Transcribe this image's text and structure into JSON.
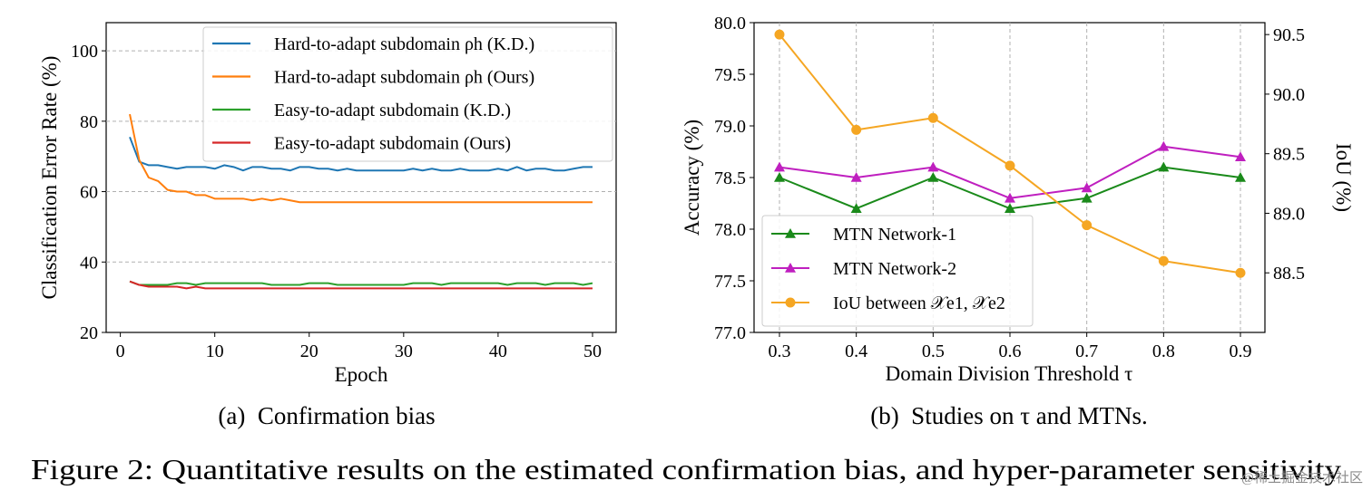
{
  "figure_caption": "Figure 2: Quantitative results on the estimated confirmation bias, and hyper-parameter sensitivity",
  "watermark": "@稀土掘金技术社区",
  "chart_data": [
    {
      "type": "line",
      "caption": "(a)  Confirmation bias",
      "xlabel": "Epoch",
      "ylabel": "Classification Error Rate (%)",
      "xlim": [
        -1.5,
        52.5
      ],
      "ylim": [
        20,
        108
      ],
      "xticks": [
        0,
        10,
        20,
        30,
        40,
        50
      ],
      "yticks": [
        20,
        40,
        60,
        80,
        100
      ],
      "grid": "horizontal-dashed",
      "legend_position": "top-right",
      "x": [
        1,
        2,
        3,
        4,
        5,
        6,
        7,
        8,
        9,
        10,
        11,
        12,
        13,
        14,
        15,
        16,
        17,
        18,
        19,
        20,
        21,
        22,
        23,
        24,
        25,
        26,
        27,
        28,
        29,
        30,
        31,
        32,
        33,
        34,
        35,
        36,
        37,
        38,
        39,
        40,
        41,
        42,
        43,
        44,
        45,
        46,
        47,
        48,
        49,
        50
      ],
      "series": [
        {
          "name": "Hard-to-adapt subdomain ρh (K.D.)",
          "color": "#1f77b4",
          "values": [
            75.5,
            68.5,
            67.5,
            67.5,
            67,
            66.5,
            67,
            67,
            67,
            66.5,
            67.5,
            67,
            66,
            67,
            67,
            66.5,
            66.5,
            66,
            67,
            67,
            66.5,
            66.5,
            66,
            66.5,
            66,
            66,
            66,
            66,
            66,
            66,
            66.5,
            66,
            66.5,
            66,
            66,
            66.5,
            66,
            66,
            66,
            66.5,
            66,
            67,
            66,
            66.5,
            66.5,
            66,
            66,
            66.5,
            67,
            67
          ]
        },
        {
          "name": "Hard-to-adapt subdomain ρh (Ours)",
          "color": "#ff7f0e",
          "values": [
            82,
            69,
            64,
            63,
            60.5,
            60,
            60,
            59,
            59,
            58,
            58,
            58,
            58,
            57.5,
            58,
            57.5,
            58,
            57.5,
            57,
            57,
            57,
            57,
            57,
            57,
            57,
            57,
            57,
            57,
            57,
            57,
            57,
            57,
            57,
            57,
            57,
            57,
            57,
            57,
            57,
            57,
            57,
            57,
            57,
            57,
            57,
            57,
            57,
            57,
            57,
            57
          ]
        },
        {
          "name": "Easy-to-adapt subdomain (K.D.)",
          "color": "#2ca02c",
          "values": [
            34.5,
            33.5,
            33.5,
            33.5,
            33.5,
            34,
            34,
            33.5,
            34,
            34,
            34,
            34,
            34,
            34,
            34,
            33.5,
            33.5,
            33.5,
            33.5,
            34,
            34,
            34,
            33.5,
            33.5,
            33.5,
            33.5,
            33.5,
            33.5,
            33.5,
            33.5,
            34,
            34,
            34,
            33.5,
            34,
            34,
            34,
            34,
            34,
            34,
            33.5,
            34,
            34,
            34,
            33.5,
            34,
            34,
            34,
            33.5,
            34
          ]
        },
        {
          "name": "Easy-to-adapt subdomain (Ours)",
          "color": "#d62728",
          "values": [
            34.5,
            33.5,
            33,
            33,
            33,
            33,
            32.5,
            33,
            32.5,
            32.5,
            32.5,
            32.5,
            32.5,
            32.5,
            32.5,
            32.5,
            32.5,
            32.5,
            32.5,
            32.5,
            32.5,
            32.5,
            32.5,
            32.5,
            32.5,
            32.5,
            32.5,
            32.5,
            32.5,
            32.5,
            32.5,
            32.5,
            32.5,
            32.5,
            32.5,
            32.5,
            32.5,
            32.5,
            32.5,
            32.5,
            32.5,
            32.5,
            32.5,
            32.5,
            32.5,
            32.5,
            32.5,
            32.5,
            32.5,
            32.5
          ]
        }
      ]
    },
    {
      "type": "line",
      "caption": "(b)  Studies on τ and MTNs.",
      "xlabel": "Domain Division Threshold τ",
      "ylabel": "Accuracy (%)",
      "y2label": "IoU (%)",
      "categories": [
        "0.3",
        "0.4",
        "0.5",
        "0.6",
        "0.7",
        "0.8",
        "0.9"
      ],
      "ylim": [
        77.0,
        80.0
      ],
      "yticks": [
        "77.0",
        "77.5",
        "78.0",
        "78.5",
        "79.0",
        "79.5",
        "80.0"
      ],
      "y2lim": [
        88.0,
        90.6
      ],
      "y2ticks": [
        "88.5",
        "89.0",
        "89.5",
        "90.0",
        "90.5"
      ],
      "grid": "vertical-dashed",
      "legend_position": "bottom-left",
      "series": [
        {
          "name": "MTN Network-1",
          "color": "#1a8a1a",
          "marker": "triangle",
          "axis": "left",
          "values": [
            78.5,
            78.2,
            78.5,
            78.2,
            78.3,
            78.6,
            78.5
          ]
        },
        {
          "name": "MTN Network-2",
          "color": "#bf1fbf",
          "marker": "triangle",
          "axis": "left",
          "values": [
            78.6,
            78.5,
            78.6,
            78.3,
            78.4,
            78.8,
            78.7
          ]
        },
        {
          "name": "IoU between 𝒳e1, 𝒳e2",
          "color": "#f5a623",
          "marker": "circle",
          "axis": "right",
          "values": [
            90.5,
            89.7,
            89.8,
            89.4,
            88.9,
            88.6,
            88.5
          ]
        }
      ]
    }
  ]
}
